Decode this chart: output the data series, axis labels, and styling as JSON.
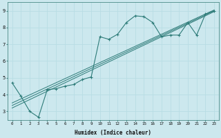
{
  "xlabel": "Humidex (Indice chaleur)",
  "ylabel": "",
  "bg_color": "#cce8ee",
  "line_color": "#2d7b78",
  "grid_color": "#b8dde4",
  "xlim": [
    -0.5,
    23.5
  ],
  "ylim": [
    2.5,
    9.5
  ],
  "xticks": [
    0,
    1,
    2,
    3,
    4,
    5,
    6,
    7,
    8,
    9,
    10,
    11,
    12,
    13,
    14,
    15,
    16,
    17,
    18,
    19,
    20,
    21,
    22,
    23
  ],
  "yticks": [
    3,
    4,
    5,
    6,
    7,
    8,
    9
  ],
  "main_x": [
    0,
    1,
    2,
    3,
    4,
    5,
    6,
    7,
    8,
    9,
    10,
    11,
    12,
    13,
    14,
    15,
    16,
    17,
    18,
    19,
    20,
    21,
    22,
    23
  ],
  "main_y": [
    4.7,
    3.9,
    3.0,
    2.65,
    4.3,
    4.35,
    4.5,
    4.6,
    4.9,
    5.05,
    7.45,
    7.3,
    7.6,
    8.3,
    8.7,
    8.65,
    8.3,
    7.45,
    7.55,
    7.55,
    8.3,
    7.55,
    8.8,
    9.0
  ],
  "line2_x": [
    0,
    23
  ],
  "line2_y": [
    3.5,
    9.05
  ],
  "line3_x": [
    0,
    23
  ],
  "line3_y": [
    3.35,
    9.0
  ],
  "line4_x": [
    0,
    23
  ],
  "line4_y": [
    3.2,
    8.95
  ]
}
